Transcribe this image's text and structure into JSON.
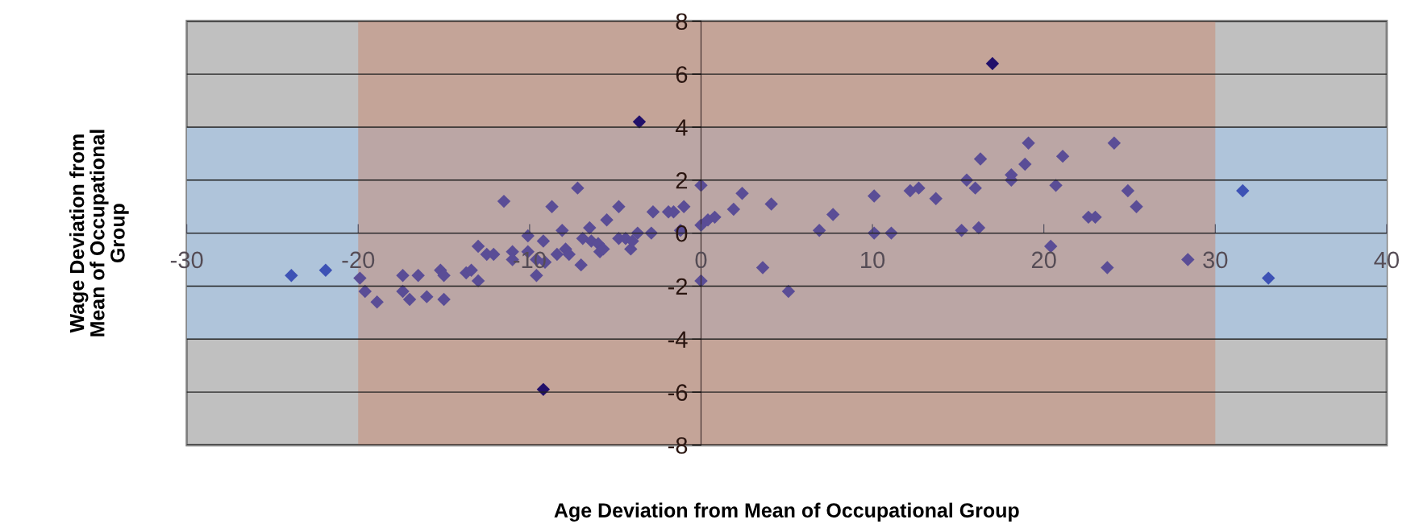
{
  "chart_data": {
    "type": "scatter",
    "xlabel": "Age Deviation from Mean of Occupational Group",
    "ylabel": "Wage Deviation from\nMean of Occupational\nGroup",
    "xlim": [
      -30,
      40
    ],
    "xticks": [
      -30,
      -20,
      -10,
      0,
      10,
      20,
      30,
      40
    ],
    "ylim": [
      -8,
      8
    ],
    "yticks": [
      -8,
      -6,
      -4,
      -2,
      0,
      2,
      4,
      6,
      8
    ],
    "grid": "y",
    "marker": "diamond",
    "bands": [
      {
        "axis": "y",
        "from": -4,
        "to": 4,
        "color": "#afc4da"
      },
      {
        "axis": "x",
        "from": -20,
        "to": 30,
        "color": "#c8886f"
      }
    ],
    "series": [
      {
        "color": "#5a4d96",
        "x": [
          -19.9,
          -19.6,
          -18.9,
          -17.4,
          -17.4,
          -17.0,
          -16.5,
          -16.0,
          -15.2,
          -15.0,
          -15.0,
          -13.7,
          -13.4,
          -13.0,
          -13.0,
          -12.5,
          -12.1,
          -11.5,
          -11.0,
          -11.0,
          -10.1,
          -10.1,
          -9.6,
          -9.6,
          -9.2,
          -9.1,
          -8.7,
          -8.4,
          -8.1,
          -7.9,
          -7.7,
          -7.2,
          -7.0,
          -6.9,
          -6.5,
          -6.4,
          -6.0,
          -5.9,
          -5.7,
          -5.5,
          -4.8,
          -4.8,
          -4.4,
          -4.1,
          -4.0,
          -3.7,
          -2.8,
          -2.9,
          -1.9,
          -1.6,
          -1.0,
          -1.2,
          0.0,
          0.0,
          0.0,
          0.4,
          0.8,
          1.9,
          2.4,
          3.6,
          4.1,
          5.1,
          6.9,
          7.7,
          10.1,
          10.1,
          11.1,
          12.2,
          12.7,
          13.7,
          15.2,
          15.5,
          16.0,
          16.2,
          16.3,
          18.1,
          18.1,
          18.9,
          19.1,
          20.4,
          20.7,
          21.1,
          22.6,
          23.0,
          23.7,
          24.1,
          24.9,
          25.4,
          28.4
        ],
        "values": [
          -1.7,
          -2.2,
          -2.6,
          -1.6,
          -2.2,
          -2.5,
          -1.6,
          -2.4,
          -1.4,
          -1.6,
          -2.5,
          -1.5,
          -1.4,
          -1.8,
          -0.5,
          -0.8,
          -0.8,
          1.2,
          -0.7,
          -1.0,
          -0.1,
          -0.7,
          -1.0,
          -1.6,
          -0.3,
          -1.1,
          1.0,
          -0.8,
          0.1,
          -0.6,
          -0.8,
          1.7,
          -1.2,
          -0.2,
          0.2,
          -0.3,
          -0.4,
          -0.7,
          -0.6,
          0.5,
          1.0,
          -0.2,
          -0.2,
          -0.6,
          -0.3,
          0.0,
          0.8,
          0.0,
          0.8,
          0.8,
          1.0,
          0.1,
          1.8,
          -1.8,
          0.3,
          0.5,
          0.6,
          0.9,
          1.5,
          -1.3,
          1.1,
          -2.2,
          0.1,
          0.7,
          1.4,
          0.0,
          0.0,
          1.6,
          1.7,
          1.3,
          0.1,
          2.0,
          1.7,
          0.2,
          2.8,
          2.2,
          2.0,
          2.6,
          3.4,
          -0.5,
          1.8,
          2.9,
          0.6,
          0.6,
          -1.3,
          3.4,
          1.6,
          1.0,
          -1.0
        ]
      },
      {
        "color": "#3d52b5",
        "x": [
          -23.9,
          -21.9,
          31.6,
          33.1
        ],
        "values": [
          -1.6,
          -1.4,
          1.6,
          -1.7
        ]
      },
      {
        "color": "#22106a",
        "x": [
          -9.2,
          -3.6,
          17.0
        ],
        "values": [
          -5.9,
          4.2,
          6.4
        ]
      }
    ]
  }
}
